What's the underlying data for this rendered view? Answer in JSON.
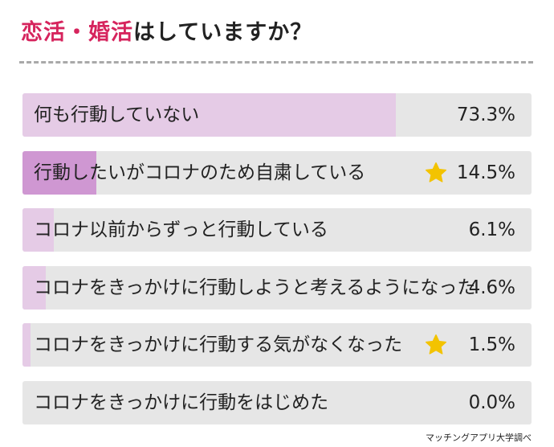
{
  "title": {
    "accent": "恋活・婚活",
    "rest": "はしていますか？"
  },
  "source": "マッチングアプリ大学調べ",
  "colors": {
    "accent": "#d6245d",
    "bar_bg": "#e6e6e6",
    "fill_light": "#e5cbe6",
    "fill_dark": "#cf97d2",
    "star": "#f3c300",
    "divider": "#a9a9a9"
  },
  "chart_data": {
    "type": "bar",
    "orientation": "horizontal",
    "title": "恋活・婚活はしていますか？",
    "categories": [
      "何も行動していない",
      "行動したいがコロナのため自粛している",
      "コロナ以前からずっと行動している",
      "コロナをきっかけに行動しようと考えるようになった",
      "コロナをきっかけに行動する気がなくなった",
      "コロナをきっかけに行動をはじめた"
    ],
    "values": [
      73.3,
      14.5,
      6.1,
      4.6,
      1.5,
      0.0
    ],
    "value_labels": [
      "73.3%",
      "14.5%",
      "6.1%",
      "4.6%",
      "1.5%",
      "0.0%"
    ],
    "highlighted": [
      false,
      true,
      false,
      false,
      false,
      false
    ],
    "starred": [
      false,
      true,
      false,
      false,
      true,
      false
    ],
    "xlim": [
      0,
      100
    ],
    "grid": false,
    "legend": "none"
  }
}
